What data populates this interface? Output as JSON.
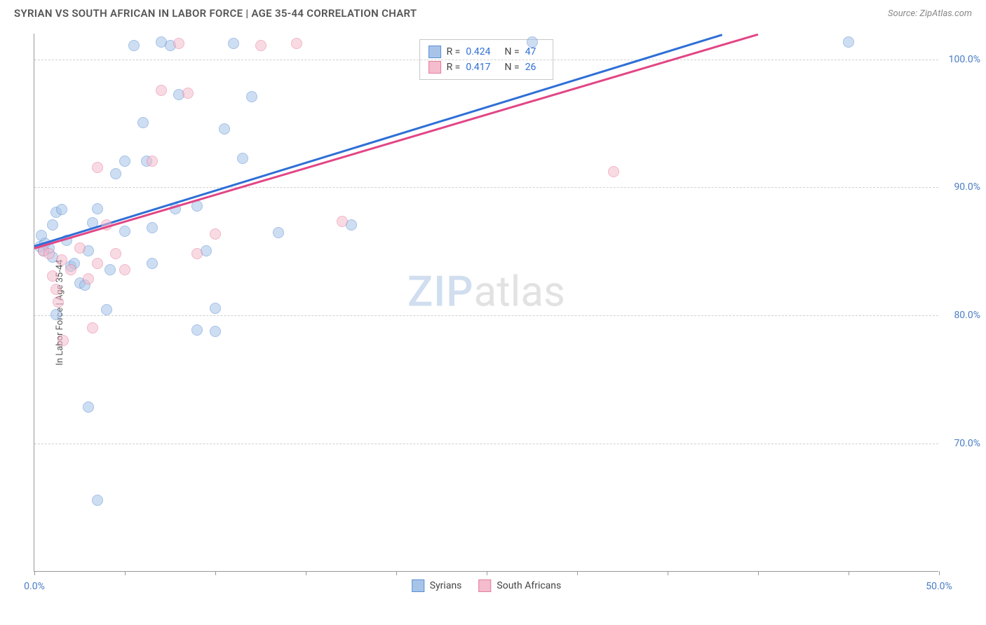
{
  "header": {
    "title": "SYRIAN VS SOUTH AFRICAN IN LABOR FORCE | AGE 35-44 CORRELATION CHART",
    "source": "Source: ZipAtlas.com"
  },
  "chart": {
    "type": "scatter",
    "ylabel": "In Labor Force | Age 35-44",
    "background_color": "#ffffff",
    "grid_color": "#d0d0d0",
    "axis_color": "#999999",
    "label_color": "#555555",
    "tick_label_color": "#4a7cc4",
    "tick_fontsize": 14,
    "label_fontsize": 13,
    "title_fontsize": 15,
    "xlim": [
      0,
      50
    ],
    "ylim": [
      60,
      102
    ],
    "xticks": [
      0,
      5,
      10,
      15,
      20,
      25,
      30,
      35,
      40,
      45,
      50
    ],
    "xtick_labels": {
      "0": "0.0%",
      "50": "50.0%"
    },
    "yticks": [
      70,
      80,
      90,
      100
    ],
    "ytick_labels": {
      "70": "70.0%",
      "80": "80.0%",
      "90": "90.0%",
      "100": "100.0%"
    },
    "point_radius": 8,
    "point_opacity": 0.55,
    "watermark": {
      "text_a": "ZIP",
      "text_b": "atlas",
      "color_a": "rgba(120,160,210,0.35)",
      "color_b": "rgba(150,150,150,0.28)",
      "fontsize": 60
    },
    "series": [
      {
        "name": "Syrians",
        "color_fill": "#a7c4e8",
        "color_stroke": "#5a8fd6",
        "trend": {
          "x1": 0,
          "y1": 85.5,
          "x2": 38,
          "y2": 102,
          "color": "#2e6fd6",
          "width": 2.5
        },
        "stats": {
          "R": "0.424",
          "N": "47"
        },
        "points": [
          [
            0.3,
            85.3
          ],
          [
            0.5,
            85.0
          ],
          [
            0.6,
            85.6
          ],
          [
            0.8,
            85.2
          ],
          [
            0.4,
            86.2
          ],
          [
            1.0,
            84.5
          ],
          [
            1.0,
            87.0
          ],
          [
            1.2,
            88.0
          ],
          [
            1.5,
            88.2
          ],
          [
            1.8,
            85.8
          ],
          [
            2.0,
            83.8
          ],
          [
            2.2,
            84.0
          ],
          [
            2.5,
            82.5
          ],
          [
            2.8,
            82.3
          ],
          [
            3.0,
            85.0
          ],
          [
            3.2,
            87.2
          ],
          [
            3.5,
            88.3
          ],
          [
            1.2,
            80.0
          ],
          [
            3.0,
            72.8
          ],
          [
            3.5,
            65.5
          ],
          [
            4.0,
            80.4
          ],
          [
            4.2,
            83.5
          ],
          [
            4.5,
            91.0
          ],
          [
            5.0,
            92.0
          ],
          [
            5.0,
            86.5
          ],
          [
            5.5,
            101.0
          ],
          [
            6.0,
            95.0
          ],
          [
            6.2,
            92.0
          ],
          [
            6.5,
            84.0
          ],
          [
            7.0,
            101.3
          ],
          [
            7.5,
            101.0
          ],
          [
            8.0,
            97.2
          ],
          [
            6.5,
            86.8
          ],
          [
            7.8,
            88.3
          ],
          [
            9.0,
            78.8
          ],
          [
            9.0,
            88.5
          ],
          [
            9.5,
            85.0
          ],
          [
            10.0,
            78.7
          ],
          [
            10.0,
            80.5
          ],
          [
            10.5,
            94.5
          ],
          [
            11.0,
            101.2
          ],
          [
            11.5,
            92.2
          ],
          [
            12.0,
            97.0
          ],
          [
            13.5,
            86.4
          ],
          [
            17.5,
            87.0
          ],
          [
            27.5,
            101.3
          ],
          [
            45.0,
            101.3
          ]
        ]
      },
      {
        "name": "South Africans",
        "color_fill": "#f4bccd",
        "color_stroke": "#e67da0",
        "trend": {
          "x1": 0,
          "y1": 85.3,
          "x2": 40,
          "y2": 102,
          "color": "#e24585",
          "width": 2.5
        },
        "stats": {
          "R": "0.417",
          "N": "26"
        },
        "points": [
          [
            0.5,
            85.0
          ],
          [
            0.8,
            84.8
          ],
          [
            1.0,
            83.0
          ],
          [
            1.2,
            82.0
          ],
          [
            1.3,
            81.0
          ],
          [
            1.5,
            84.3
          ],
          [
            1.6,
            78.0
          ],
          [
            2.0,
            83.5
          ],
          [
            2.5,
            85.2
          ],
          [
            3.0,
            82.8
          ],
          [
            3.2,
            79.0
          ],
          [
            3.5,
            84.0
          ],
          [
            3.5,
            91.5
          ],
          [
            4.0,
            87.0
          ],
          [
            4.5,
            84.8
          ],
          [
            5.0,
            83.5
          ],
          [
            6.5,
            92.0
          ],
          [
            7.0,
            97.5
          ],
          [
            8.0,
            101.2
          ],
          [
            8.5,
            97.3
          ],
          [
            9.0,
            84.8
          ],
          [
            10.0,
            86.3
          ],
          [
            12.5,
            101.0
          ],
          [
            14.5,
            101.2
          ],
          [
            17.0,
            87.3
          ],
          [
            32.0,
            91.2
          ]
        ]
      }
    ],
    "stats_box": {
      "border_color": "#c8c8c8",
      "bg": "#ffffff",
      "label_color": "#444444",
      "value_color": "#2e6fd6",
      "R_label": "R =",
      "N_label": "N ="
    },
    "legend": {
      "position": "bottom-center",
      "label_color": "#444444"
    }
  }
}
